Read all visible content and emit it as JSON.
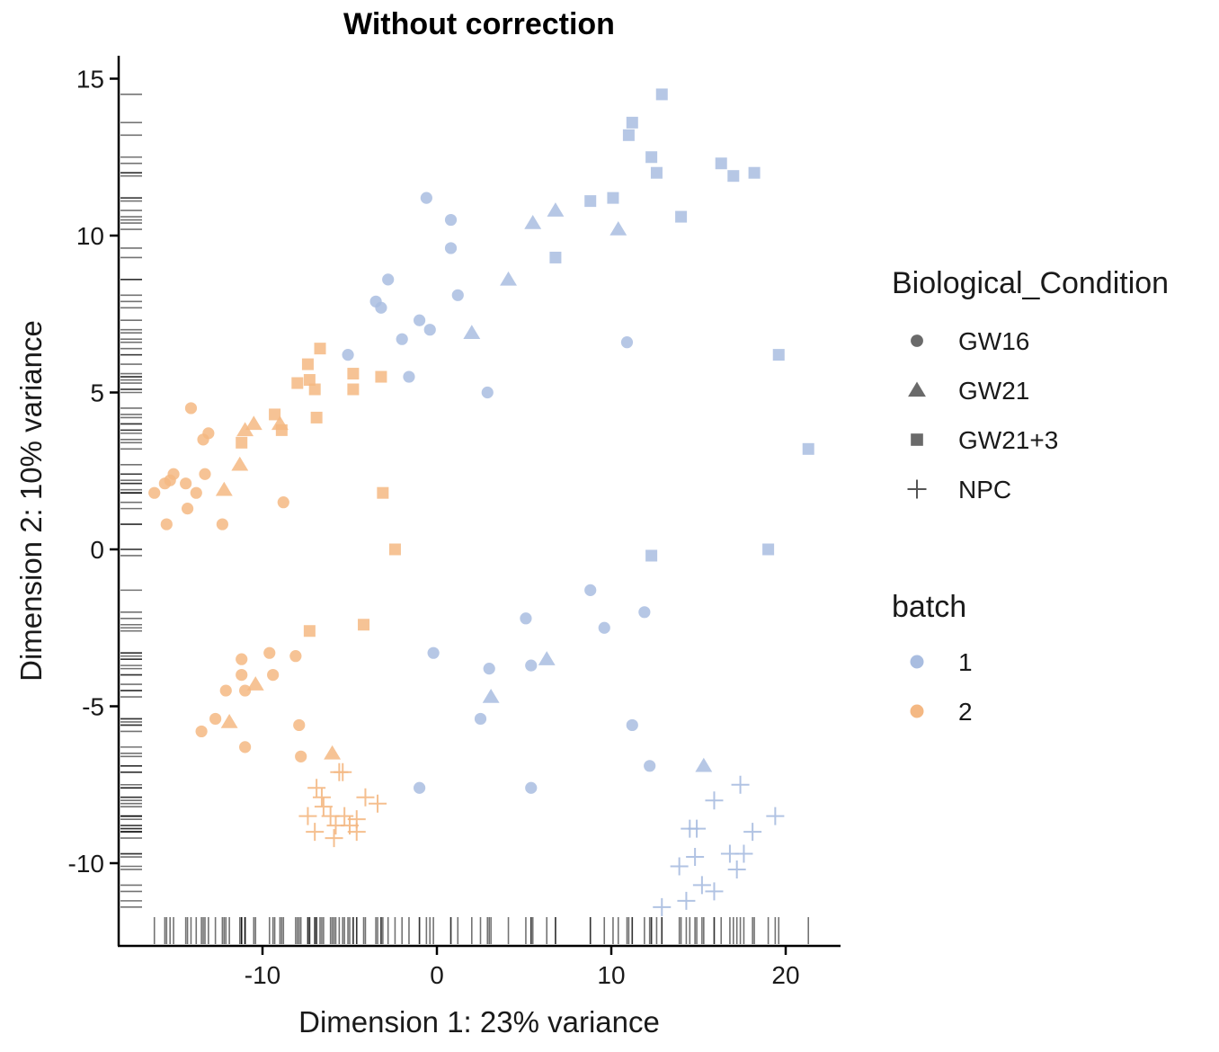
{
  "chart_data": {
    "type": "scatter",
    "title": "Without correction",
    "xlabel": "Dimension 1: 23% variance",
    "ylabel": "Dimension 2: 10% variance",
    "xlim": [
      -18,
      23
    ],
    "ylim": [
      -12,
      15.8
    ],
    "x_ticks": [
      -10,
      0,
      10,
      20
    ],
    "x_tick_labels": [
      "-10",
      "0",
      "10",
      "20"
    ],
    "y_ticks": [
      -10,
      -5,
      0,
      5,
      10,
      15
    ],
    "y_tick_labels": [
      "-10",
      "-5",
      "0",
      "5",
      "10",
      "15"
    ],
    "grid": false,
    "rug": true,
    "legend_placement": "right",
    "legends": [
      {
        "title": "Biological_Condition",
        "items": [
          {
            "label": "GW16",
            "shape": "circle"
          },
          {
            "label": "GW21",
            "shape": "triangle"
          },
          {
            "label": "GW21+3",
            "shape": "square"
          },
          {
            "label": "NPC",
            "shape": "plus"
          }
        ]
      },
      {
        "title": "batch",
        "items": [
          {
            "label": "1",
            "color": "#a9bde0"
          },
          {
            "label": "2",
            "color": "#f4b883"
          }
        ]
      }
    ],
    "colors": {
      "1": "#a9bde0",
      "2": "#f4b883"
    },
    "points": [
      {
        "x": -0.6,
        "y": 11.2,
        "shape": "circle",
        "batch": "1"
      },
      {
        "x": 0.8,
        "y": 10.5,
        "shape": "circle",
        "batch": "1"
      },
      {
        "x": 0.8,
        "y": 9.6,
        "shape": "circle",
        "batch": "1"
      },
      {
        "x": -2.8,
        "y": 8.6,
        "shape": "circle",
        "batch": "1"
      },
      {
        "x": -3.5,
        "y": 7.9,
        "shape": "circle",
        "batch": "1"
      },
      {
        "x": -3.2,
        "y": 7.7,
        "shape": "circle",
        "batch": "1"
      },
      {
        "x": 1.2,
        "y": 8.1,
        "shape": "circle",
        "batch": "1"
      },
      {
        "x": -1.0,
        "y": 7.3,
        "shape": "circle",
        "batch": "1"
      },
      {
        "x": -0.4,
        "y": 7.0,
        "shape": "circle",
        "batch": "1"
      },
      {
        "x": -2.0,
        "y": 6.7,
        "shape": "circle",
        "batch": "1"
      },
      {
        "x": -5.1,
        "y": 6.2,
        "shape": "circle",
        "batch": "1"
      },
      {
        "x": -1.6,
        "y": 5.5,
        "shape": "circle",
        "batch": "1"
      },
      {
        "x": 2.9,
        "y": 5.0,
        "shape": "circle",
        "batch": "1"
      },
      {
        "x": 10.9,
        "y": 6.6,
        "shape": "circle",
        "batch": "1"
      },
      {
        "x": 8.8,
        "y": -1.3,
        "shape": "circle",
        "batch": "1"
      },
      {
        "x": 11.9,
        "y": -2.0,
        "shape": "circle",
        "batch": "1"
      },
      {
        "x": 5.1,
        "y": -2.2,
        "shape": "circle",
        "batch": "1"
      },
      {
        "x": 9.6,
        "y": -2.5,
        "shape": "circle",
        "batch": "1"
      },
      {
        "x": -0.2,
        "y": -3.3,
        "shape": "circle",
        "batch": "1"
      },
      {
        "x": 3.0,
        "y": -3.8,
        "shape": "circle",
        "batch": "1"
      },
      {
        "x": 5.4,
        "y": -3.7,
        "shape": "circle",
        "batch": "1"
      },
      {
        "x": 2.5,
        "y": -5.4,
        "shape": "circle",
        "batch": "1"
      },
      {
        "x": 11.2,
        "y": -5.6,
        "shape": "circle",
        "batch": "1"
      },
      {
        "x": 12.2,
        "y": -6.9,
        "shape": "circle",
        "batch": "1"
      },
      {
        "x": -1.0,
        "y": -7.6,
        "shape": "circle",
        "batch": "1"
      },
      {
        "x": 5.4,
        "y": -7.6,
        "shape": "circle",
        "batch": "1"
      },
      {
        "x": 5.5,
        "y": 10.4,
        "shape": "triangle",
        "batch": "1"
      },
      {
        "x": 6.8,
        "y": 10.8,
        "shape": "triangle",
        "batch": "1"
      },
      {
        "x": 10.4,
        "y": 10.2,
        "shape": "triangle",
        "batch": "1"
      },
      {
        "x": 4.1,
        "y": 8.6,
        "shape": "triangle",
        "batch": "1"
      },
      {
        "x": 2.0,
        "y": 6.9,
        "shape": "triangle",
        "batch": "1"
      },
      {
        "x": 6.3,
        "y": -3.5,
        "shape": "triangle",
        "batch": "1"
      },
      {
        "x": 3.1,
        "y": -4.7,
        "shape": "triangle",
        "batch": "1"
      },
      {
        "x": 15.3,
        "y": -6.9,
        "shape": "triangle",
        "batch": "1"
      },
      {
        "x": 12.9,
        "y": 14.5,
        "shape": "square",
        "batch": "1"
      },
      {
        "x": 11.2,
        "y": 13.6,
        "shape": "square",
        "batch": "1"
      },
      {
        "x": 11.0,
        "y": 13.2,
        "shape": "square",
        "batch": "1"
      },
      {
        "x": 12.3,
        "y": 12.5,
        "shape": "square",
        "batch": "1"
      },
      {
        "x": 12.6,
        "y": 12.0,
        "shape": "square",
        "batch": "1"
      },
      {
        "x": 16.3,
        "y": 12.3,
        "shape": "square",
        "batch": "1"
      },
      {
        "x": 17.0,
        "y": 11.9,
        "shape": "square",
        "batch": "1"
      },
      {
        "x": 18.2,
        "y": 12.0,
        "shape": "square",
        "batch": "1"
      },
      {
        "x": 8.8,
        "y": 11.1,
        "shape": "square",
        "batch": "1"
      },
      {
        "x": 10.1,
        "y": 11.2,
        "shape": "square",
        "batch": "1"
      },
      {
        "x": 14.0,
        "y": 10.6,
        "shape": "square",
        "batch": "1"
      },
      {
        "x": 6.8,
        "y": 9.3,
        "shape": "square",
        "batch": "1"
      },
      {
        "x": 19.6,
        "y": 6.2,
        "shape": "square",
        "batch": "1"
      },
      {
        "x": 21.3,
        "y": 3.2,
        "shape": "square",
        "batch": "1"
      },
      {
        "x": 12.3,
        "y": -0.2,
        "shape": "square",
        "batch": "1"
      },
      {
        "x": 19.0,
        "y": 0.0,
        "shape": "square",
        "batch": "1"
      },
      {
        "x": 17.4,
        "y": -7.5,
        "shape": "plus",
        "batch": "1"
      },
      {
        "x": 15.9,
        "y": -8.0,
        "shape": "plus",
        "batch": "1"
      },
      {
        "x": 19.4,
        "y": -8.5,
        "shape": "plus",
        "batch": "1"
      },
      {
        "x": 14.5,
        "y": -8.9,
        "shape": "plus",
        "batch": "1"
      },
      {
        "x": 14.9,
        "y": -8.9,
        "shape": "plus",
        "batch": "1"
      },
      {
        "x": 18.1,
        "y": -9.0,
        "shape": "plus",
        "batch": "1"
      },
      {
        "x": 14.8,
        "y": -9.8,
        "shape": "plus",
        "batch": "1"
      },
      {
        "x": 16.8,
        "y": -9.7,
        "shape": "plus",
        "batch": "1"
      },
      {
        "x": 17.6,
        "y": -9.7,
        "shape": "plus",
        "batch": "1"
      },
      {
        "x": 13.9,
        "y": -10.1,
        "shape": "plus",
        "batch": "1"
      },
      {
        "x": 17.2,
        "y": -10.2,
        "shape": "plus",
        "batch": "1"
      },
      {
        "x": 15.2,
        "y": -10.7,
        "shape": "plus",
        "batch": "1"
      },
      {
        "x": 15.9,
        "y": -10.9,
        "shape": "plus",
        "batch": "1"
      },
      {
        "x": 14.3,
        "y": -11.2,
        "shape": "plus",
        "batch": "1"
      },
      {
        "x": 12.9,
        "y": -11.4,
        "shape": "plus",
        "batch": "1"
      },
      {
        "x": -14.1,
        "y": 4.5,
        "shape": "circle",
        "batch": "2"
      },
      {
        "x": -13.1,
        "y": 3.7,
        "shape": "circle",
        "batch": "2"
      },
      {
        "x": -13.4,
        "y": 3.5,
        "shape": "circle",
        "batch": "2"
      },
      {
        "x": -15.1,
        "y": 2.4,
        "shape": "circle",
        "batch": "2"
      },
      {
        "x": -13.3,
        "y": 2.4,
        "shape": "circle",
        "batch": "2"
      },
      {
        "x": -15.3,
        "y": 2.2,
        "shape": "circle",
        "batch": "2"
      },
      {
        "x": -15.6,
        "y": 2.1,
        "shape": "circle",
        "batch": "2"
      },
      {
        "x": -14.4,
        "y": 2.1,
        "shape": "circle",
        "batch": "2"
      },
      {
        "x": -16.2,
        "y": 1.8,
        "shape": "circle",
        "batch": "2"
      },
      {
        "x": -13.8,
        "y": 1.8,
        "shape": "circle",
        "batch": "2"
      },
      {
        "x": -8.8,
        "y": 1.5,
        "shape": "circle",
        "batch": "2"
      },
      {
        "x": -14.3,
        "y": 1.3,
        "shape": "circle",
        "batch": "2"
      },
      {
        "x": -15.5,
        "y": 0.8,
        "shape": "circle",
        "batch": "2"
      },
      {
        "x": -12.3,
        "y": 0.8,
        "shape": "circle",
        "batch": "2"
      },
      {
        "x": -11.2,
        "y": -3.5,
        "shape": "circle",
        "batch": "2"
      },
      {
        "x": -9.6,
        "y": -3.3,
        "shape": "circle",
        "batch": "2"
      },
      {
        "x": -8.1,
        "y": -3.4,
        "shape": "circle",
        "batch": "2"
      },
      {
        "x": -11.2,
        "y": -4.0,
        "shape": "circle",
        "batch": "2"
      },
      {
        "x": -9.4,
        "y": -4.0,
        "shape": "circle",
        "batch": "2"
      },
      {
        "x": -12.1,
        "y": -4.5,
        "shape": "circle",
        "batch": "2"
      },
      {
        "x": -11.0,
        "y": -4.5,
        "shape": "circle",
        "batch": "2"
      },
      {
        "x": -12.7,
        "y": -5.4,
        "shape": "circle",
        "batch": "2"
      },
      {
        "x": -13.5,
        "y": -5.8,
        "shape": "circle",
        "batch": "2"
      },
      {
        "x": -7.9,
        "y": -5.6,
        "shape": "circle",
        "batch": "2"
      },
      {
        "x": -11.0,
        "y": -6.3,
        "shape": "circle",
        "batch": "2"
      },
      {
        "x": -7.8,
        "y": -6.6,
        "shape": "circle",
        "batch": "2"
      },
      {
        "x": -10.5,
        "y": 4.0,
        "shape": "triangle",
        "batch": "2"
      },
      {
        "x": -9.0,
        "y": 4.0,
        "shape": "triangle",
        "batch": "2"
      },
      {
        "x": -11.0,
        "y": 3.8,
        "shape": "triangle",
        "batch": "2"
      },
      {
        "x": -11.3,
        "y": 2.7,
        "shape": "triangle",
        "batch": "2"
      },
      {
        "x": -12.2,
        "y": 1.9,
        "shape": "triangle",
        "batch": "2"
      },
      {
        "x": -10.4,
        "y": -4.3,
        "shape": "triangle",
        "batch": "2"
      },
      {
        "x": -11.9,
        "y": -5.5,
        "shape": "triangle",
        "batch": "2"
      },
      {
        "x": -6.0,
        "y": -6.5,
        "shape": "triangle",
        "batch": "2"
      },
      {
        "x": -6.7,
        "y": 6.4,
        "shape": "square",
        "batch": "2"
      },
      {
        "x": -7.4,
        "y": 5.9,
        "shape": "square",
        "batch": "2"
      },
      {
        "x": -4.8,
        "y": 5.6,
        "shape": "square",
        "batch": "2"
      },
      {
        "x": -7.3,
        "y": 5.4,
        "shape": "square",
        "batch": "2"
      },
      {
        "x": -3.2,
        "y": 5.5,
        "shape": "square",
        "batch": "2"
      },
      {
        "x": -8.0,
        "y": 5.3,
        "shape": "square",
        "batch": "2"
      },
      {
        "x": -7.0,
        "y": 5.1,
        "shape": "square",
        "batch": "2"
      },
      {
        "x": -4.8,
        "y": 5.1,
        "shape": "square",
        "batch": "2"
      },
      {
        "x": -9.3,
        "y": 4.3,
        "shape": "square",
        "batch": "2"
      },
      {
        "x": -6.9,
        "y": 4.2,
        "shape": "square",
        "batch": "2"
      },
      {
        "x": -8.9,
        "y": 3.8,
        "shape": "square",
        "batch": "2"
      },
      {
        "x": -11.2,
        "y": 3.4,
        "shape": "square",
        "batch": "2"
      },
      {
        "x": -3.1,
        "y": 1.8,
        "shape": "square",
        "batch": "2"
      },
      {
        "x": -2.4,
        "y": 0.0,
        "shape": "square",
        "batch": "2"
      },
      {
        "x": -7.3,
        "y": -2.6,
        "shape": "square",
        "batch": "2"
      },
      {
        "x": -4.2,
        "y": -2.4,
        "shape": "square",
        "batch": "2"
      },
      {
        "x": -5.4,
        "y": -7.1,
        "shape": "plus",
        "batch": "2"
      },
      {
        "x": -5.6,
        "y": -7.1,
        "shape": "plus",
        "batch": "2"
      },
      {
        "x": -6.9,
        "y": -7.6,
        "shape": "plus",
        "batch": "2"
      },
      {
        "x": -6.6,
        "y": -7.9,
        "shape": "plus",
        "batch": "2"
      },
      {
        "x": -4.1,
        "y": -7.9,
        "shape": "plus",
        "batch": "2"
      },
      {
        "x": -3.4,
        "y": -8.1,
        "shape": "plus",
        "batch": "2"
      },
      {
        "x": -6.5,
        "y": -8.2,
        "shape": "plus",
        "batch": "2"
      },
      {
        "x": -7.4,
        "y": -8.5,
        "shape": "plus",
        "batch": "2"
      },
      {
        "x": -6.1,
        "y": -8.5,
        "shape": "plus",
        "batch": "2"
      },
      {
        "x": -5.3,
        "y": -8.5,
        "shape": "plus",
        "batch": "2"
      },
      {
        "x": -4.6,
        "y": -8.6,
        "shape": "plus",
        "batch": "2"
      },
      {
        "x": -5.8,
        "y": -8.8,
        "shape": "plus",
        "batch": "2"
      },
      {
        "x": -5.0,
        "y": -8.8,
        "shape": "plus",
        "batch": "2"
      },
      {
        "x": -7.0,
        "y": -9.0,
        "shape": "plus",
        "batch": "2"
      },
      {
        "x": -4.6,
        "y": -9.0,
        "shape": "plus",
        "batch": "2"
      },
      {
        "x": -5.9,
        "y": -9.2,
        "shape": "plus",
        "batch": "2"
      }
    ]
  }
}
